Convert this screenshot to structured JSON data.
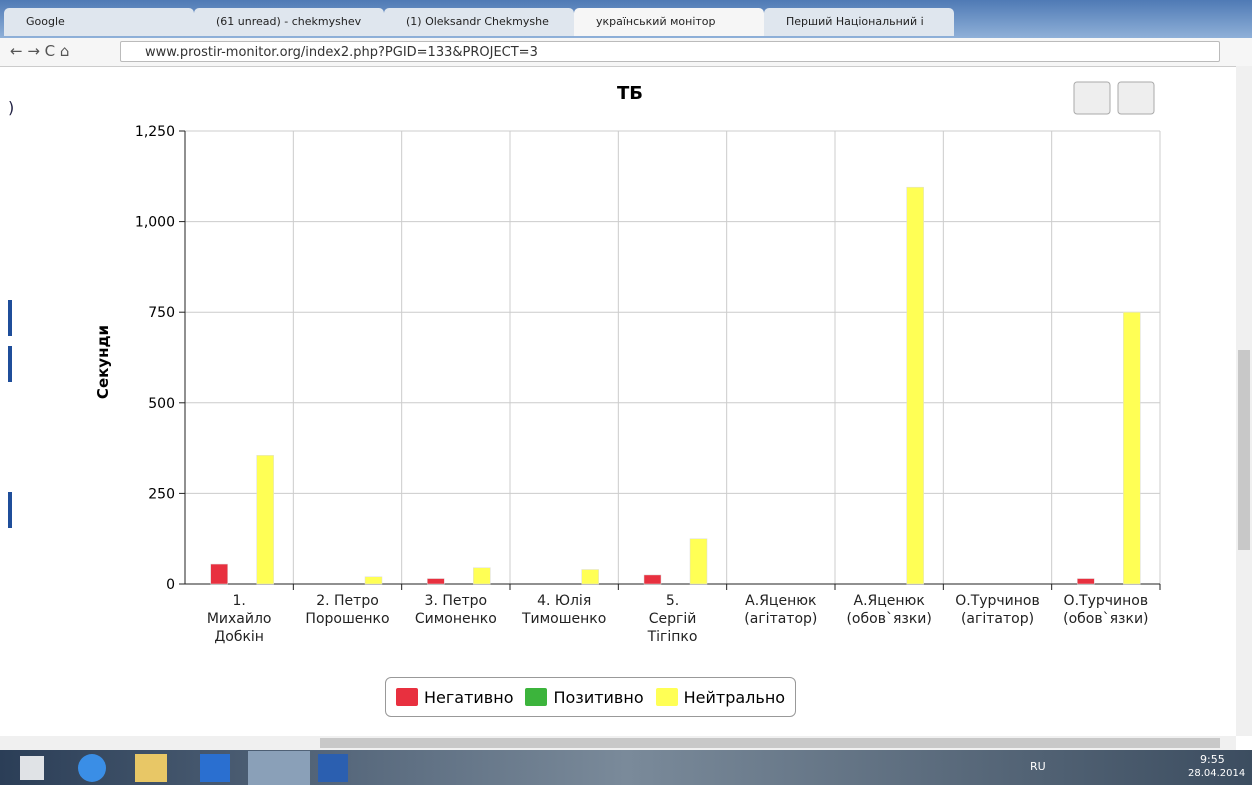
{
  "browser": {
    "tabs": [
      "Google",
      "(61 unread) - chekmyshev",
      "(1) Oleksandr Chekmyshe",
      "український монітор",
      "Перший Національний і"
    ],
    "url": "www.prostir-monitor.org/index2.php?PGID=133&PROJECT=3"
  },
  "page": {
    "left_fragment": ")"
  },
  "chart_data": {
    "type": "bar",
    "title": "ТБ",
    "y_label": "Секунди",
    "categories": [
      "1.\nМихайло\nДобкін",
      "2. Петро\nПорошенко",
      "3. Петро\nСимоненко",
      "4. Юлія\nТимошенко",
      "5.\nСергій\nТігіпко",
      "А.Яценюк\n(агітатор)",
      "А.Яценюк\n(обов`язки)",
      "О.Турчинов\n(агітатор)",
      "О.Турчинов\n(обов`язки)"
    ],
    "series": [
      {
        "name": "Негативно",
        "color": "#e8303f",
        "values": [
          55,
          0,
          15,
          0,
          25,
          0,
          0,
          0,
          15
        ]
      },
      {
        "name": "Позитивно",
        "color": "#3cb43c",
        "values": [
          0,
          0,
          0,
          0,
          0,
          0,
          0,
          0,
          0
        ]
      },
      {
        "name": "Нейтрально",
        "color": "#ffff55",
        "values": [
          355,
          20,
          45,
          40,
          125,
          0,
          1095,
          0,
          750
        ]
      }
    ],
    "ylim": [
      0,
      1250
    ],
    "yticks": [
      0,
      250,
      500,
      750,
      {
        "value": 1000,
        "label": "1,000"
      },
      {
        "value": 1250,
        "label": "1,250"
      }
    ],
    "grid": true,
    "legend": "bottom"
  },
  "taskbar": {
    "language": "RU",
    "time": "9:55",
    "date": "28.04.2014"
  }
}
